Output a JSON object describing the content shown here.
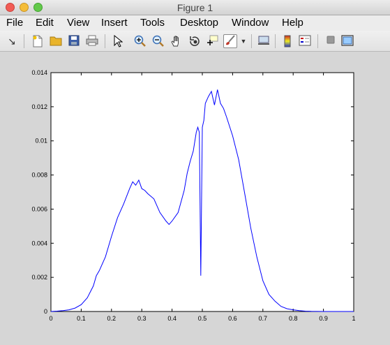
{
  "window": {
    "title": "Figure 1"
  },
  "menu": [
    "File",
    "Edit",
    "View",
    "Insert",
    "Tools",
    "Desktop",
    "Window",
    "Help"
  ],
  "toolbar": {
    "icons": [
      "arrow-icon",
      "new-figure-icon",
      "open-file-icon",
      "save-icon",
      "print-icon",
      "select-pointer-icon",
      "zoom-in-icon",
      "zoom-out-icon",
      "pan-hand-icon",
      "rotate-3d-icon",
      "data-cursor-icon",
      "brush-icon",
      "dropdown-arrow-icon",
      "link-plot-icon",
      "colorbar-icon",
      "legend-icon",
      "hide-plot-tools-icon",
      "show-plot-tools-icon"
    ]
  },
  "chart_data": {
    "type": "line",
    "title": "",
    "xlabel": "",
    "ylabel": "",
    "xlim": [
      0,
      1
    ],
    "ylim": [
      0,
      0.014
    ],
    "xticks": [
      "0",
      "0.1",
      "0.2",
      "0.3",
      "0.4",
      "0.5",
      "0.6",
      "0.7",
      "0.8",
      "0.9",
      "1"
    ],
    "yticks": [
      "0",
      "0.002",
      "0.004",
      "0.006",
      "0.008",
      "0.01",
      "0.012",
      "0.014"
    ],
    "grid": false,
    "series": [
      {
        "color": "#0000ff",
        "x": [
          0,
          0.02,
          0.04,
          0.06,
          0.08,
          0.1,
          0.12,
          0.14,
          0.15,
          0.16,
          0.18,
          0.2,
          0.22,
          0.24,
          0.26,
          0.27,
          0.28,
          0.29,
          0.3,
          0.31,
          0.32,
          0.34,
          0.36,
          0.38,
          0.39,
          0.4,
          0.42,
          0.44,
          0.45,
          0.46,
          0.47,
          0.48,
          0.485,
          0.49,
          0.495,
          0.5,
          0.505,
          0.51,
          0.52,
          0.53,
          0.54,
          0.55,
          0.56,
          0.57,
          0.58,
          0.6,
          0.62,
          0.64,
          0.66,
          0.68,
          0.7,
          0.72,
          0.74,
          0.76,
          0.78,
          0.8,
          0.82,
          0.84,
          0.86,
          0.9,
          1
        ],
        "y": [
          0,
          2e-05,
          5e-05,
          0.0001,
          0.0002,
          0.0004,
          0.0008,
          0.0015,
          0.0021,
          0.0024,
          0.0032,
          0.0044,
          0.0055,
          0.0063,
          0.0072,
          0.0076,
          0.0074,
          0.0077,
          0.0072,
          0.0071,
          0.0069,
          0.0066,
          0.0058,
          0.0053,
          0.0051,
          0.0053,
          0.0058,
          0.0071,
          0.0081,
          0.0088,
          0.0094,
          0.0105,
          0.0108,
          0.0105,
          0.0021,
          0.0108,
          0.0112,
          0.0122,
          0.0126,
          0.0129,
          0.0121,
          0.013,
          0.0122,
          0.0119,
          0.0114,
          0.0103,
          0.0089,
          0.0069,
          0.0049,
          0.0032,
          0.0018,
          0.001,
          0.0006,
          0.0003,
          0.00016,
          0.0001,
          5e-05,
          2e-05,
          1e-05,
          0,
          0
        ]
      }
    ]
  }
}
